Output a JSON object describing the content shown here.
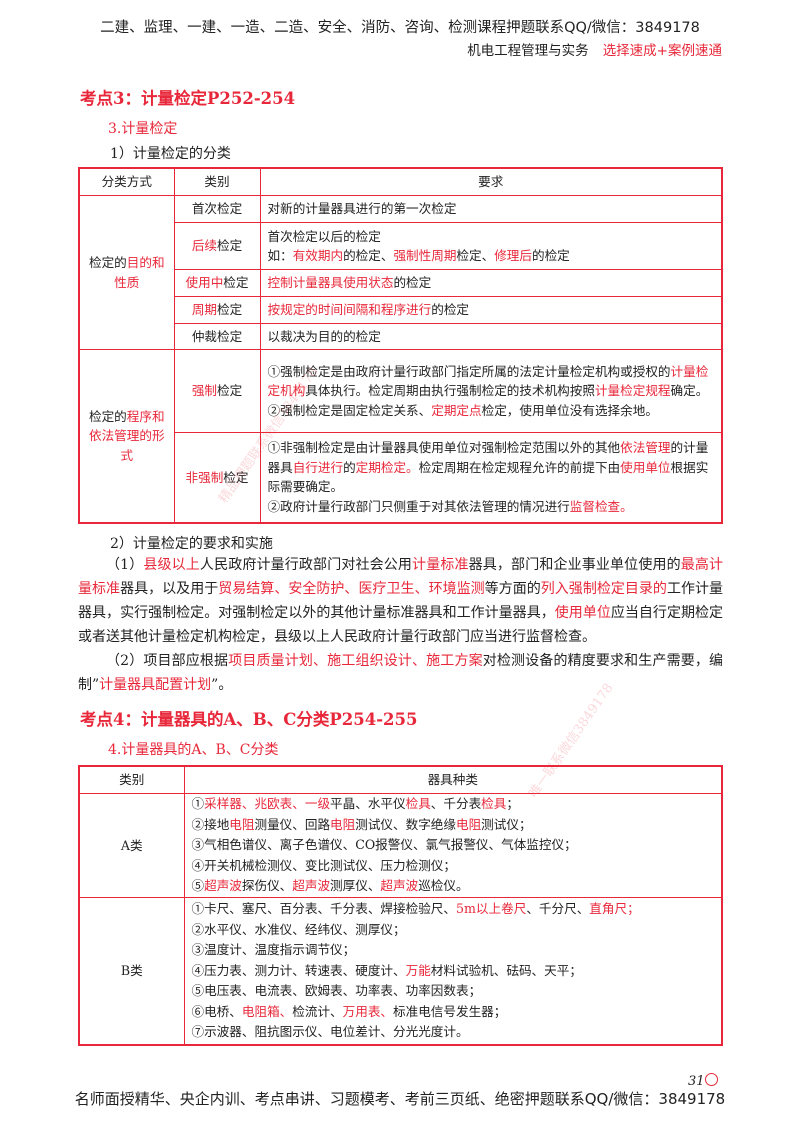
{
  "header": {
    "line1": "二建、监理、一建、一造、二造、安全、消防、咨询、检测课程押题联系QQ/微信：3849178",
    "subject": "机电工程管理与实务",
    "tagline": "选择速成+案例速通"
  },
  "section3": {
    "title": "考点3：计量检定P252-254",
    "subtitle": "3.计量检定",
    "sub1": "1）计量检定的分类",
    "table": {
      "headers": [
        "分类方式",
        "类别",
        "要求"
      ],
      "groups": [
        {
          "label": [
            {
              "t": "检定的"
            },
            {
              "t": "目的和性质",
              "red": true
            }
          ],
          "rows": [
            {
              "cat": [
                {
                  "t": "首次检定"
                }
              ],
              "req": [
                [
                  {
                    "t": "对新的计量器具进行的第一次检定"
                  }
                ]
              ]
            },
            {
              "cat": [
                {
                  "t": "后续",
                  "red": true
                },
                {
                  "t": "检定"
                }
              ],
              "req": [
                [
                  {
                    "t": "首次检定以后的检定"
                  }
                ],
                [
                  {
                    "t": "如："
                  },
                  {
                    "t": "有效期内",
                    "red": true
                  },
                  {
                    "t": "的检定、"
                  },
                  {
                    "t": "强制性周期",
                    "red": true
                  },
                  {
                    "t": "检定、"
                  },
                  {
                    "t": "修理后",
                    "red": true
                  },
                  {
                    "t": "的检定"
                  }
                ]
              ]
            },
            {
              "cat": [
                {
                  "t": "使用中",
                  "red": true
                },
                {
                  "t": "检定"
                }
              ],
              "req": [
                [
                  {
                    "t": "控制计量器具使用状态",
                    "red": true
                  },
                  {
                    "t": "的检定"
                  }
                ]
              ]
            },
            {
              "cat": [
                {
                  "t": "周期",
                  "red": true
                },
                {
                  "t": "检定"
                }
              ],
              "req": [
                [
                  {
                    "t": "按规定的时间间隔和程序进行",
                    "red": true
                  },
                  {
                    "t": "的检定"
                  }
                ]
              ]
            },
            {
              "cat": [
                {
                  "t": "仲裁检定"
                }
              ],
              "req": [
                [
                  {
                    "t": "以裁决为目的的检定"
                  }
                ]
              ]
            }
          ]
        },
        {
          "label": [
            {
              "t": "检定的"
            },
            {
              "t": "程序和依法管理的形式",
              "red": true
            }
          ],
          "rows": [
            {
              "cat": [
                {
                  "t": "强制",
                  "red": true
                },
                {
                  "t": "检定"
                }
              ],
              "req": [
                [
                  {
                    "t": "①强制检定是由政府计量行政部门指定所属的法定计量检定机构或授权的"
                  },
                  {
                    "t": "计量检定机构",
                    "red": true
                  },
                  {
                    "t": "具体执行。检定周期由执行强制检定的技术机构按照"
                  },
                  {
                    "t": "计量检定规程",
                    "red": true
                  },
                  {
                    "t": "确定。"
                  }
                ],
                [
                  {
                    "t": "②强制检定是固定检定关系、"
                  },
                  {
                    "t": "定期定点",
                    "red": true
                  },
                  {
                    "t": "检定，使用单位没有选择余地。"
                  }
                ]
              ]
            },
            {
              "cat": [
                {
                  "t": "非强制",
                  "red": true
                },
                {
                  "t": "检定"
                }
              ],
              "req": [
                [
                  {
                    "t": "①非强制检定是由计量器具使用单位对强制检定范围以外的其他"
                  },
                  {
                    "t": "依法管理",
                    "red": true
                  },
                  {
                    "t": "的计量器具"
                  },
                  {
                    "t": "自行进行",
                    "red": true
                  },
                  {
                    "t": "的"
                  },
                  {
                    "t": "定期检定。",
                    "red": true
                  },
                  {
                    "t": "检定周期在检定规程允许的前提下由"
                  },
                  {
                    "t": "使用单位",
                    "red": true
                  },
                  {
                    "t": "根据实际需要确定。"
                  }
                ],
                [
                  {
                    "t": "②政府计量行政部门只侧重于对其依法管理的情况进行"
                  },
                  {
                    "t": "监督检查。",
                    "red": true
                  }
                ]
              ]
            }
          ]
        }
      ]
    },
    "sub2": "2）计量检定的要求和实施",
    "paragraphs": [
      [
        {
          "t": "（1）"
        },
        {
          "t": "县级以上",
          "red": true
        },
        {
          "t": "人民政府计量行政部门对社会公用"
        },
        {
          "t": "计量标准",
          "red": true
        },
        {
          "t": "器具，部门和企业事业单位使用的"
        },
        {
          "t": "最高计量标准",
          "red": true
        },
        {
          "t": "器具，以及用于"
        },
        {
          "t": "贸易结算、安全防护、医疗卫生、环境监测",
          "red": true
        },
        {
          "t": "等方面的"
        },
        {
          "t": "列入强制检定目录的",
          "red": true
        },
        {
          "t": "工作计量器具，实行强制检定。对强制检定以外的其他计量标准器具和工作计量器具，"
        },
        {
          "t": "使用单位",
          "red": true
        },
        {
          "t": "应当自行定期检定或者送其他计量检定机构检定，县级以上人民政府计量行政部门应当进行监督检查。"
        }
      ],
      [
        {
          "t": "（2）项目部应根据"
        },
        {
          "t": "项目质量计划、施工组织设计、施工方案",
          "red": true
        },
        {
          "t": "对检测设备的精度要求和生产需要，编制”"
        },
        {
          "t": "计量器具配置计划",
          "red": true
        },
        {
          "t": "”。"
        }
      ]
    ]
  },
  "section4": {
    "title": "考点4：计量器具的A、B、C分类P254-255",
    "subtitle": "4.计量器具的A、B、C分类",
    "table": {
      "headers": [
        "类别",
        "器具种类"
      ],
      "rows": [
        {
          "cat": "A类",
          "items": [
            [
              {
                "t": "①"
              },
              {
                "t": "采样器、兆欧表、一级",
                "red": true
              },
              {
                "t": "平晶、水平仪"
              },
              {
                "t": "检具",
                "red": true
              },
              {
                "t": "、千分表"
              },
              {
                "t": "检具",
                "red": true
              },
              {
                "t": "；"
              }
            ],
            [
              {
                "t": "②接地"
              },
              {
                "t": "电阻",
                "red": true
              },
              {
                "t": "测量仪、回路"
              },
              {
                "t": "电阻",
                "red": true
              },
              {
                "t": "测试仪、数字绝缘"
              },
              {
                "t": "电阻",
                "red": true
              },
              {
                "t": "测试仪；"
              }
            ],
            [
              {
                "t": "③气相色谱仪、离子色谱仪、CO报警仪、氯气报警仪、气体监控仪；"
              }
            ],
            [
              {
                "t": "④开关机械检测仪、变比测试仪、压力检测仪；"
              }
            ],
            [
              {
                "t": "⑤"
              },
              {
                "t": "超声波",
                "red": true
              },
              {
                "t": "探伤仪、"
              },
              {
                "t": "超声波",
                "red": true
              },
              {
                "t": "测厚仪、"
              },
              {
                "t": "超声波",
                "red": true
              },
              {
                "t": "巡检仪。"
              }
            ]
          ]
        },
        {
          "cat": "B类",
          "items": [
            [
              {
                "t": "①卡尺、塞尺、百分表、千分表、焊接检验尺、"
              },
              {
                "t": "5m以上卷尺",
                "red": true
              },
              {
                "t": "、千分尺、"
              },
              {
                "t": "直角尺；",
                "red": true
              }
            ],
            [
              {
                "t": "②水平仪、水准仪、经纬仪、测厚仪；"
              }
            ],
            [
              {
                "t": "③温度计、温度指示调节仪；"
              }
            ],
            [
              {
                "t": "④压力表、测力计、转速表、硬度计、"
              },
              {
                "t": "万能",
                "red": true
              },
              {
                "t": "材料试验机、砝码、天平；"
              }
            ],
            [
              {
                "t": "⑤电压表、电流表、欧姆表、功率表、功率因数表；"
              }
            ],
            [
              {
                "t": "⑥电桥、"
              },
              {
                "t": "电阻箱、",
                "red": true
              },
              {
                "t": "检流计、"
              },
              {
                "t": "万用表、",
                "red": true
              },
              {
                "t": "标准电信号发生器；"
              }
            ],
            [
              {
                "t": "⑦示波器、阻抗图示仪、电位差计、分光光度计。"
              }
            ]
          ]
        }
      ]
    }
  },
  "watermarks": [
    "精品押题联系微信3849178",
    "唯一联系微信3849178"
  ],
  "footer": {
    "text": "名师面授精华、央企内训、考点串讲、习题模考、考前三页纸、绝密押题联系QQ/微信：3849178",
    "page_number": "31"
  },
  "colors": {
    "accent": "#e8283a",
    "text": "#222222"
  }
}
